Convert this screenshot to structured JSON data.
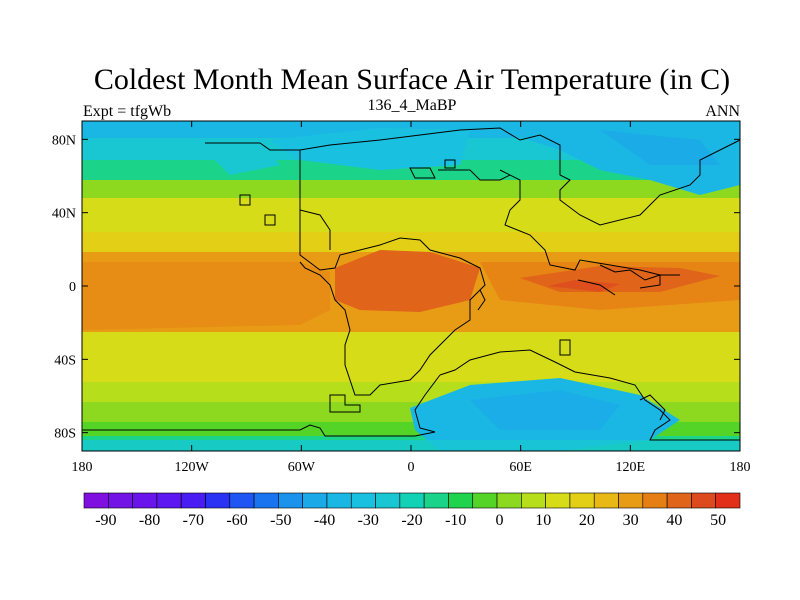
{
  "chart_data": {
    "type": "heatmap",
    "title": "Coldest Month Mean Surface Air Temperature (in C)",
    "subtitle_left": "Expt = tfgWb",
    "subtitle_center": "136_4_MaBP",
    "subtitle_right": "ANN",
    "x_range": [
      -180,
      180
    ],
    "y_range": [
      -90,
      90
    ],
    "x_ticks": [
      {
        "value": -180,
        "label": "180"
      },
      {
        "value": -120,
        "label": "120W"
      },
      {
        "value": -60,
        "label": "60W"
      },
      {
        "value": 0,
        "label": "0"
      },
      {
        "value": 60,
        "label": "60E"
      },
      {
        "value": 120,
        "label": "120E"
      },
      {
        "value": 180,
        "label": "180"
      }
    ],
    "y_ticks": [
      {
        "value": 80,
        "label": "80N"
      },
      {
        "value": 40,
        "label": "40N"
      },
      {
        "value": 0,
        "label": "0"
      },
      {
        "value": -40,
        "label": "40S"
      },
      {
        "value": -80,
        "label": "80S"
      }
    ],
    "colorbar": {
      "colors": [
        "#7f10e0",
        "#7413e6",
        "#6a14ec",
        "#5d17f0",
        "#4a1cf4",
        "#2a33f4",
        "#1f55f2",
        "#1a74f0",
        "#1b92ec",
        "#1ba9e8",
        "#1ab7e4",
        "#1ac0df",
        "#18c7d2",
        "#13d1b4",
        "#1bd48a",
        "#20d34c",
        "#55d428",
        "#8cd920",
        "#b7de1b",
        "#d6dd18",
        "#e3d016",
        "#e8b916",
        "#e89c15",
        "#e57f14",
        "#e0641a",
        "#dd4a1e",
        "#e22f1a"
      ],
      "labels": [
        "-90",
        "-80",
        "-70",
        "-60",
        "-50",
        "-40",
        "-30",
        "-20",
        "-10",
        "0",
        "10",
        "20",
        "30",
        "40",
        "50"
      ],
      "levels": [
        -95,
        -90,
        -85,
        -80,
        -75,
        -70,
        -65,
        -60,
        -55,
        -50,
        -45,
        -40,
        -35,
        -30,
        -25,
        -20,
        -15,
        -10,
        -5,
        0,
        5,
        10,
        15,
        20,
        25,
        30,
        35,
        40,
        45,
        50,
        55
      ]
    }
  }
}
